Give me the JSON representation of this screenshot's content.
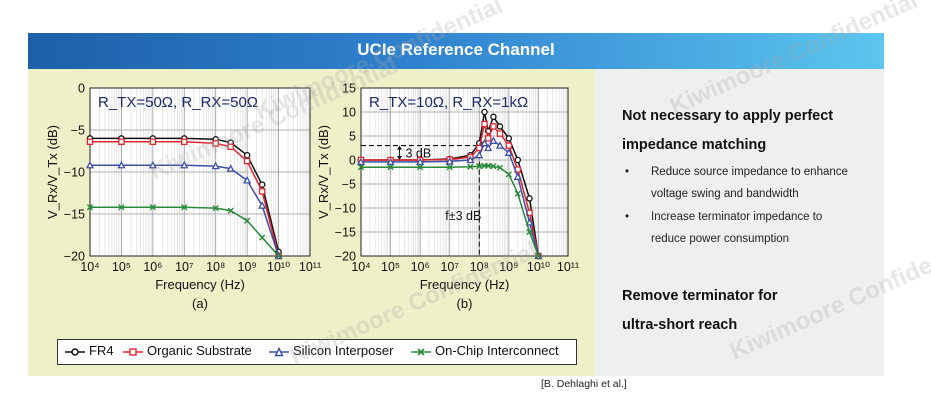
{
  "banner": {
    "title": "UCIe Reference Channel"
  },
  "right": {
    "heading1_line1": "Not necessary to apply perfect",
    "heading1_line2": "impedance matching",
    "bullets": [
      {
        "line1": "Reduce source impedance to enhance",
        "line2": "voltage swing and bandwidth"
      },
      {
        "line1": "Increase terminator impedance to",
        "line2": "reduce power consumption"
      }
    ],
    "heading2_line1": "Remove terminator for",
    "heading2_line2": "ultra-short reach"
  },
  "citation": "[B. Dehlaghi et al.]",
  "watermarks": [
    "Kiwimoore Confidential"
  ],
  "colors": {
    "FR4": "#111111",
    "Organic Substrate": "#e0262f",
    "Silicon Interposer": "#3b4fa8",
    "On-Chip Interconnect": "#2a8a3a"
  },
  "chart_data": [
    {
      "type": "line",
      "panel": "(a)",
      "annotation": "R_TX=50Ω, R_RX=50Ω",
      "xlabel": "Frequency (Hz)",
      "ylabel": "V_Rx/V_Tx (dB)",
      "x_scale": "log",
      "xlim": [
        10000,
        100000000000
      ],
      "ylim": [
        -20,
        0
      ],
      "yticks": [
        0,
        -5,
        -10,
        -15,
        -20
      ],
      "grid": true,
      "x": [
        10000,
        100000,
        1000000,
        10000000,
        100000000,
        300000000,
        1000000000,
        3000000000,
        10000000000
      ],
      "series": [
        {
          "name": "FR4",
          "marker": "circle",
          "values": [
            -6.0,
            -6.0,
            -6.0,
            -6.0,
            -6.1,
            -6.5,
            -8.0,
            -11.5,
            -19.5
          ]
        },
        {
          "name": "Organic Substrate",
          "marker": "square",
          "values": [
            -6.4,
            -6.4,
            -6.4,
            -6.4,
            -6.6,
            -7.0,
            -8.7,
            -12.3,
            -20.0
          ]
        },
        {
          "name": "Silicon Interposer",
          "marker": "triangle",
          "values": [
            -9.2,
            -9.2,
            -9.2,
            -9.2,
            -9.3,
            -9.6,
            -11.0,
            -14.0,
            -20.0
          ]
        },
        {
          "name": "On-Chip Interconnect",
          "marker": "x",
          "values": [
            -14.2,
            -14.2,
            -14.2,
            -14.2,
            -14.3,
            -14.6,
            -15.8,
            -17.8,
            -20.0
          ]
        }
      ]
    },
    {
      "type": "line",
      "panel": "(b)",
      "annotation": "R_TX=10Ω, R_RX=1kΩ",
      "xlabel": "Frequency (Hz)",
      "ylabel": "V_Rx/V_Tx (dB)",
      "x_scale": "log",
      "xlim": [
        10000,
        100000000000
      ],
      "ylim": [
        -20,
        15
      ],
      "yticks": [
        15,
        10,
        5,
        0,
        -5,
        -10,
        -15,
        -20
      ],
      "grid": true,
      "annotations": [
        {
          "text": "3 dB"
        },
        {
          "text": "f±3 dB"
        }
      ],
      "x": [
        10000,
        100000,
        1000000,
        10000000,
        50000000,
        100000000,
        150000000,
        200000000,
        300000000,
        500000000,
        1000000000,
        2000000000,
        5000000000,
        10000000000
      ],
      "series": [
        {
          "name": "FR4",
          "marker": "circle",
          "values": [
            0.0,
            0.0,
            0.0,
            0.2,
            1.0,
            3.5,
            10.0,
            6.0,
            9.0,
            7.0,
            4.5,
            0.0,
            -8.0,
            -20.0
          ]
        },
        {
          "name": "Organic Substrate",
          "marker": "square",
          "values": [
            0.0,
            0.0,
            0.0,
            0.1,
            0.6,
            2.5,
            7.5,
            4.5,
            7.0,
            5.5,
            3.0,
            -2.0,
            -11.0,
            -20.0
          ]
        },
        {
          "name": "Silicon Interposer",
          "marker": "triangle",
          "values": [
            -0.4,
            -0.4,
            -0.4,
            -0.3,
            0.0,
            1.0,
            3.5,
            2.5,
            4.0,
            3.0,
            1.5,
            -3.5,
            -13.0,
            -20.0
          ]
        },
        {
          "name": "On-Chip Interconnect",
          "marker": "x",
          "values": [
            -1.5,
            -1.5,
            -1.5,
            -1.5,
            -1.4,
            -1.3,
            -1.2,
            -1.2,
            -1.3,
            -1.6,
            -3.0,
            -7.0,
            -15.0,
            -20.0
          ]
        }
      ]
    }
  ],
  "legend": {
    "items": [
      "FR4",
      "Organic Substrate",
      "Silicon Interposer",
      "On-Chip Interconnect"
    ]
  }
}
